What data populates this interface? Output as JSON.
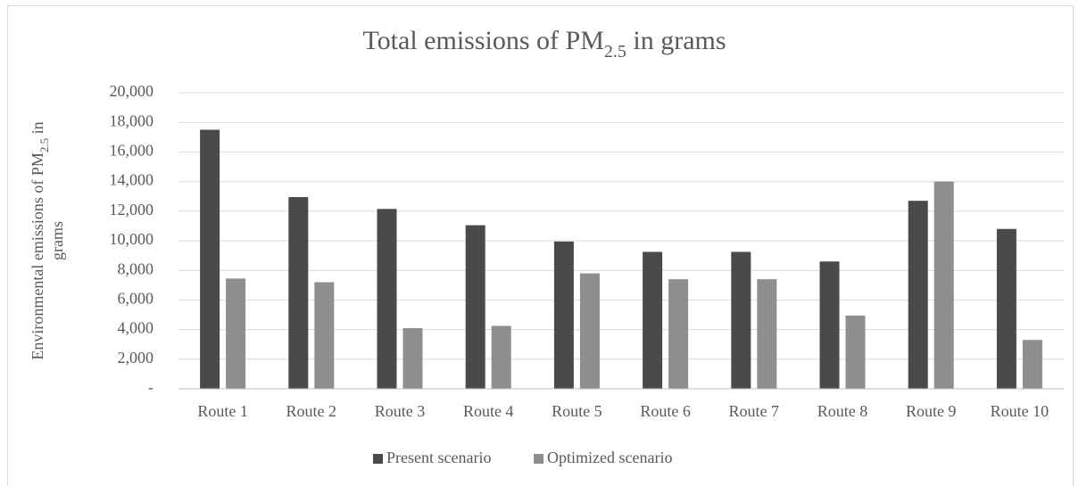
{
  "chart_data": {
    "type": "bar",
    "title": {
      "text": "Total emissions of PM",
      "subscript": "2.5",
      "after": " in grams"
    },
    "y_label": {
      "line1": "Environmental emissions of PM",
      "subscript": "2.5",
      "after": " in",
      "line2": "grams"
    },
    "categories": [
      "Route 1",
      "Route 2",
      "Route 3",
      "Route 4",
      "Route 5",
      "Route 6",
      "Route 7",
      "Route 8",
      "Route 9",
      "Route 10"
    ],
    "series": [
      {
        "name": "Present scenario",
        "color": "#4a4a4a",
        "values": [
          17500,
          12950,
          12150,
          11050,
          9950,
          9250,
          9250,
          8600,
          12700,
          10800
        ]
      },
      {
        "name": "Optimized scenario",
        "color": "#8e8e8e",
        "values": [
          7450,
          7200,
          4100,
          4250,
          7800,
          7400,
          7400,
          4950,
          14000,
          3300
        ]
      }
    ],
    "ylim": [
      0,
      20000
    ],
    "yticks": [
      {
        "value": 0,
        "label": "-"
      },
      {
        "value": 2000,
        "label": "2,000"
      },
      {
        "value": 4000,
        "label": "4,000"
      },
      {
        "value": 6000,
        "label": "6,000"
      },
      {
        "value": 8000,
        "label": "8,000"
      },
      {
        "value": 10000,
        "label": "10,000"
      },
      {
        "value": 12000,
        "label": "12,000"
      },
      {
        "value": 14000,
        "label": "14,000"
      },
      {
        "value": 16000,
        "label": "16,000"
      },
      {
        "value": 18000,
        "label": "18,000"
      },
      {
        "value": 20000,
        "label": "20,000"
      }
    ],
    "grid": true,
    "legend": "bottom"
  }
}
